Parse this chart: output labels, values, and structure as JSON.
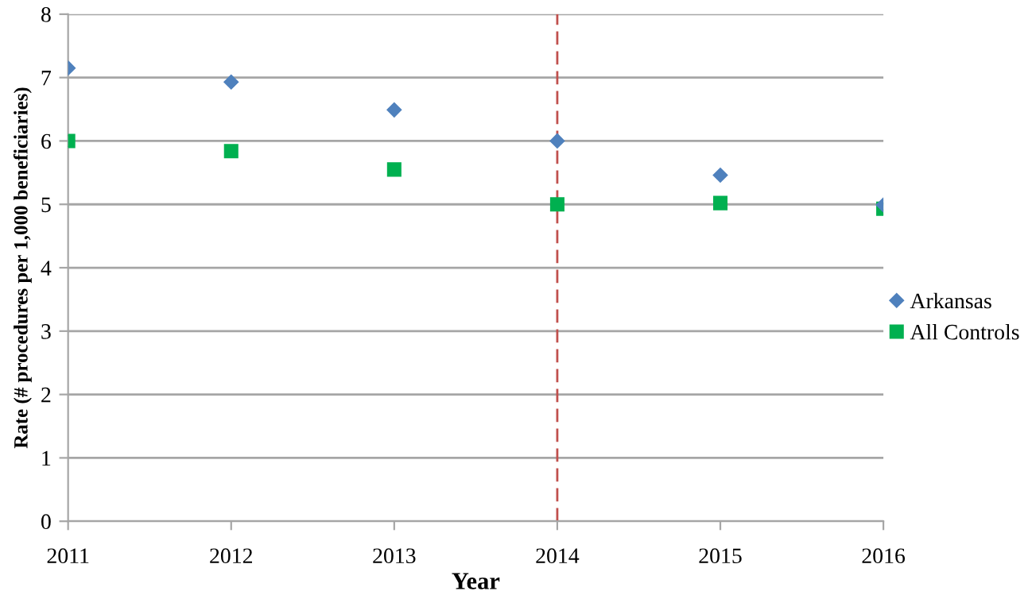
{
  "chart_data": {
    "type": "scatter",
    "xlabel": "Year",
    "ylabel": "Rate (# procedures per 1,000 beneficiaries)",
    "x": [
      2011,
      2012,
      2013,
      2014,
      2015,
      2016
    ],
    "series": [
      {
        "name": "Arkansas",
        "color": "#4f81bd",
        "marker": "diamond",
        "values": [
          7.15,
          6.93,
          6.49,
          6.0,
          5.46,
          4.99
        ]
      },
      {
        "name": "All Controls",
        "color": "#00b050",
        "marker": "square",
        "values": [
          6.0,
          5.84,
          5.55,
          5.0,
          5.02,
          4.93
        ]
      }
    ],
    "xlim": [
      2011,
      2016
    ],
    "xticks": [
      2011,
      2012,
      2013,
      2014,
      2015,
      2016
    ],
    "ylim": [
      0,
      8
    ],
    "yticks": [
      0,
      1,
      2,
      3,
      4,
      5,
      6,
      7,
      8
    ],
    "grid": "y",
    "legend": "right",
    "ref_lines": [
      {
        "axis": "x",
        "value": 2014,
        "color": "#c0504d",
        "line_style": "dashed"
      }
    ]
  }
}
